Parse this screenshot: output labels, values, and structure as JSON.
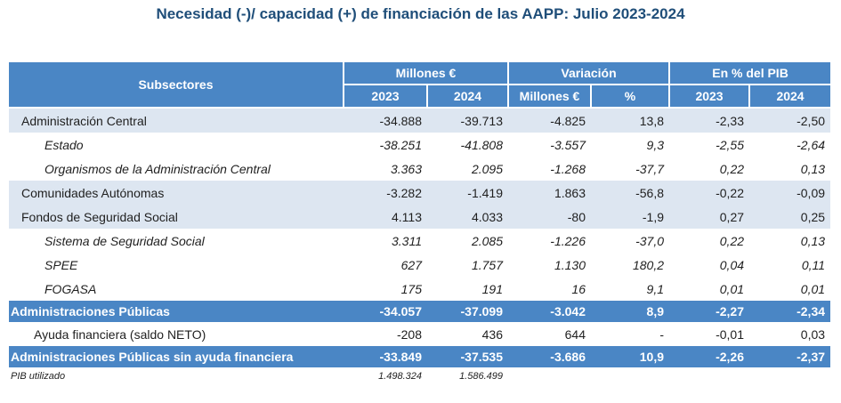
{
  "title": "Necesidad (-)/ capacidad (+) de financiación de las AAPP:  Julio 2023-2024",
  "header": {
    "subsectores": "Subsectores",
    "millones": "Millones €",
    "variacion": "Variación",
    "pib": "En % del PIB",
    "y2023": "2023",
    "y2024": "2024",
    "var_millones": "Millones €",
    "var_pct": "%",
    "pib2023": "2023",
    "pib2024": "2024"
  },
  "rows": [
    {
      "label": "Administración Central",
      "v2023": "-34.888",
      "v2024": "-39.713",
      "var": "-4.825",
      "pct": "13,8",
      "p2023": "-2,33",
      "p2024": "-2,50"
    },
    {
      "label": "Estado",
      "v2023": "-38.251",
      "v2024": "-41.808",
      "var": "-3.557",
      "pct": "9,3",
      "p2023": "-2,55",
      "p2024": "-2,64"
    },
    {
      "label": "Organismos de la Administración Central",
      "v2023": "3.363",
      "v2024": "2.095",
      "var": "-1.268",
      "pct": "-37,7",
      "p2023": "0,22",
      "p2024": "0,13"
    },
    {
      "label": "Comunidades Autónomas",
      "v2023": "-3.282",
      "v2024": "-1.419",
      "var": "1.863",
      "pct": "-56,8",
      "p2023": "-0,22",
      "p2024": "-0,09"
    },
    {
      "label": "Fondos de Seguridad Social",
      "v2023": "4.113",
      "v2024": "4.033",
      "var": "-80",
      "pct": "-1,9",
      "p2023": "0,27",
      "p2024": "0,25"
    },
    {
      "label": "Sistema de Seguridad Social",
      "v2023": "3.311",
      "v2024": "2.085",
      "var": "-1.226",
      "pct": "-37,0",
      "p2023": "0,22",
      "p2024": "0,13"
    },
    {
      "label": "SPEE",
      "v2023": "627",
      "v2024": "1.757",
      "var": "1.130",
      "pct": "180,2",
      "p2023": "0,04",
      "p2024": "0,11"
    },
    {
      "label": "FOGASA",
      "v2023": "175",
      "v2024": "191",
      "var": "16",
      "pct": "9,1",
      "p2023": "0,01",
      "p2024": "0,01"
    },
    {
      "label": "Administraciones Públicas",
      "v2023": "-34.057",
      "v2024": "-37.099",
      "var": "-3.042",
      "pct": "8,9",
      "p2023": "-2,27",
      "p2024": "-2,34"
    },
    {
      "label": "Ayuda financiera (saldo NETO)",
      "v2023": "-208",
      "v2024": "436",
      "var": "644",
      "pct": "-",
      "p2023": "-0,01",
      "p2024": "0,03"
    },
    {
      "label": "Administraciones Públicas sin  ayuda financiera",
      "v2023": "-33.849",
      "v2024": "-37.535",
      "var": "-3.686",
      "pct": "10,9",
      "p2023": "-2,26",
      "p2024": "-2,37"
    }
  ],
  "note": {
    "label": "PIB utilizado",
    "v2023": "1.498.324",
    "v2024": "1.586.499"
  }
}
